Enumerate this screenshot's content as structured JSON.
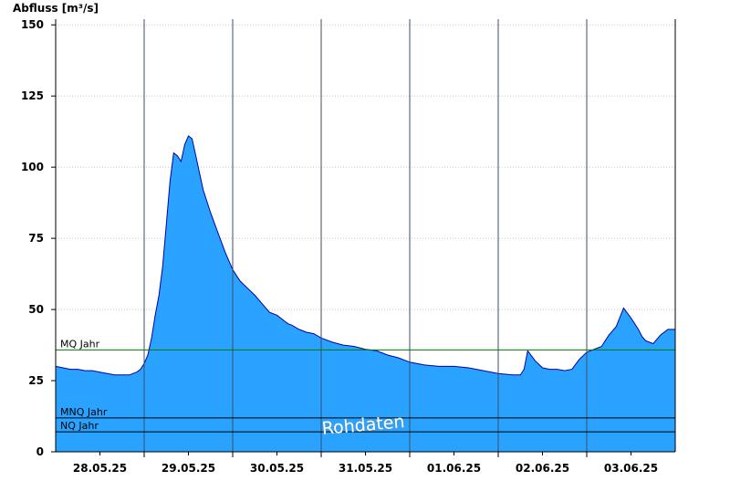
{
  "chart_data": {
    "type": "area",
    "ylabel": "Abfluss [m³/s]",
    "ylim": [
      0,
      152
    ],
    "yticks": [
      0,
      25,
      50,
      75,
      100,
      125,
      150
    ],
    "xlim": [
      "28.05.25 00:00",
      "04.06.25 00:00"
    ],
    "xtick_labels": [
      "28.05.25",
      "29.05.25",
      "30.05.25",
      "31.05.25",
      "01.06.25",
      "02.06.25",
      "03.06.25"
    ],
    "grid": "horizontal dotted, vertical at day boundaries",
    "colors": {
      "area": "#29a3ff",
      "outline": "#0000aa",
      "mq_line": "#007700",
      "ref_line": "#000000"
    },
    "watermark": "Rohdaten",
    "reference_lines": [
      {
        "name": "MQ Jahr",
        "value": 35.8
      },
      {
        "name": "MNQ Jahr",
        "value": 11.9
      },
      {
        "name": "NQ Jahr",
        "value": 7.0
      }
    ],
    "series": [
      {
        "x": [
          "28.05.25 00:00",
          "28.05.25 02:00",
          "28.05.25 04:00",
          "28.05.25 06:00",
          "28.05.25 08:00",
          "28.05.25 10:00",
          "28.05.25 12:00",
          "28.05.25 14:00",
          "28.05.25 16:00",
          "28.05.25 18:00",
          "28.05.25 20:00",
          "28.05.25 21:00",
          "28.05.25 22:00",
          "28.05.25 23:00",
          "29.05.25 00:00",
          "29.05.25 01:00",
          "29.05.25 02:00",
          "29.05.25 03:00",
          "29.05.25 04:00",
          "29.05.25 05:00",
          "29.05.25 06:00",
          "29.05.25 07:00",
          "29.05.25 08:00",
          "29.05.25 09:00",
          "29.05.25 10:00",
          "29.05.25 11:00",
          "29.05.25 12:00",
          "29.05.25 13:00",
          "29.05.25 14:00",
          "29.05.25 15:00",
          "29.05.25 16:00",
          "29.05.25 18:00",
          "29.05.25 20:00",
          "29.05.25 22:00",
          "30.05.25 00:00",
          "30.05.25 02:00",
          "30.05.25 04:00",
          "30.05.25 06:00",
          "30.05.25 08:00",
          "30.05.25 10:00",
          "30.05.25 12:00",
          "30.05.25 14:00",
          "30.05.25 15:00",
          "30.05.25 16:00",
          "30.05.25 18:00",
          "30.05.25 20:00",
          "30.05.25 22:00",
          "31.05.25 00:00",
          "31.05.25 03:00",
          "31.05.25 06:00",
          "31.05.25 09:00",
          "31.05.25 12:00",
          "31.05.25 15:00",
          "31.05.25 18:00",
          "31.05.25 21:00",
          "01.06.25 00:00",
          "01.06.25 04:00",
          "01.06.25 08:00",
          "01.06.25 12:00",
          "01.06.25 16:00",
          "01.06.25 20:00",
          "02.06.25 00:00",
          "02.06.25 04:00",
          "02.06.25 06:00",
          "02.06.25 07:00",
          "02.06.25 08:00",
          "02.06.25 10:00",
          "02.06.25 12:00",
          "02.06.25 14:00",
          "02.06.25 16:00",
          "02.06.25 18:00",
          "02.06.25 20:00",
          "02.06.25 22:00",
          "03.06.25 00:00",
          "03.06.25 02:00",
          "03.06.25 04:00",
          "03.06.25 06:00",
          "03.06.25 08:00",
          "03.06.25 10:00",
          "03.06.25 12:00",
          "03.06.25 14:00",
          "03.06.25 15:00",
          "03.06.25 16:00",
          "03.06.25 18:00",
          "03.06.25 20:00",
          "03.06.25 22:00",
          "04.06.25 00:00"
        ],
        "values": [
          30,
          29.5,
          29,
          29,
          28.5,
          28.5,
          28,
          27.5,
          27,
          27,
          27,
          27.5,
          28,
          29,
          31,
          34,
          40,
          48,
          55,
          65,
          80,
          95,
          105,
          104,
          102,
          108,
          111,
          110,
          104,
          98,
          92,
          84,
          77,
          70,
          64,
          60,
          57.5,
          55,
          52,
          49,
          48,
          46,
          45,
          44.5,
          43,
          42,
          41.5,
          40,
          38.5,
          37.5,
          37,
          36,
          35.5,
          34,
          33,
          31.5,
          30.5,
          30,
          30,
          29.5,
          28.5,
          27.5,
          27,
          27,
          29,
          35.5,
          32,
          29.5,
          29,
          29,
          28.5,
          29,
          32.5,
          35,
          36,
          37,
          41,
          44,
          50.5,
          47,
          43,
          40.5,
          39,
          38,
          41,
          43,
          43
        ]
      }
    ]
  }
}
